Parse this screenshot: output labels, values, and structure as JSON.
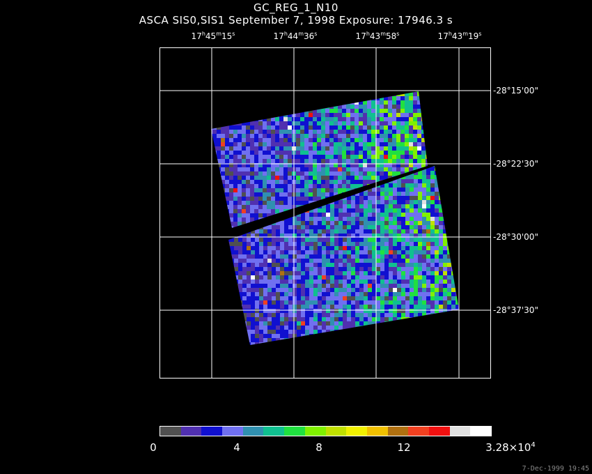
{
  "header": {
    "title": "GC_REG_1_N10",
    "subtitle": "ASCA SIS0,SIS1 September 7, 1998 Exposure: 17946.3 s"
  },
  "ra_labels": [
    {
      "h": "17",
      "m": "45",
      "s": "15"
    },
    {
      "h": "17",
      "m": "44",
      "s": "36"
    },
    {
      "h": "17",
      "m": "43",
      "s": "58"
    },
    {
      "h": "17",
      "m": "43",
      "s": "19"
    }
  ],
  "dec_labels": [
    "-28°15'00\"",
    "-28°22'30\"",
    "-28°30'00\"",
    "-28°37'30\""
  ],
  "colorbar": {
    "colors": [
      "#505050",
      "#5030b0",
      "#1010d0",
      "#7070f0",
      "#3090b0",
      "#10c090",
      "#20e040",
      "#80f000",
      "#c0e000",
      "#f0f000",
      "#f0c000",
      "#b07010",
      "#f04020",
      "#f01010",
      "#e0e0e0",
      "#ffffff"
    ],
    "labels": {
      "zero": "0",
      "four": "4",
      "eight": "8",
      "twelve": "12",
      "max_mantissa": "3.28×10",
      "max_exp": "4"
    }
  },
  "timestamp": "7-Dec-1999 19:45"
}
